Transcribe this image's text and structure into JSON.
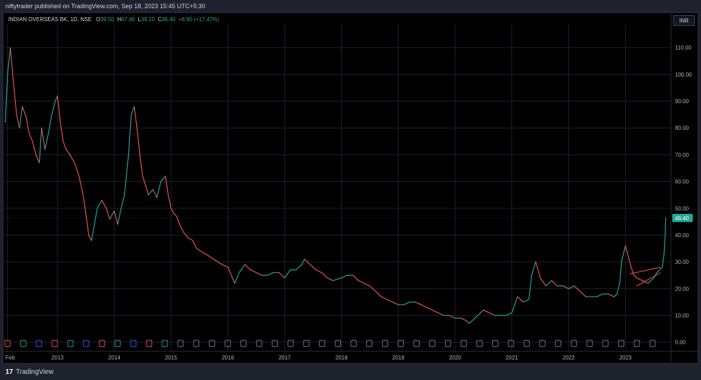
{
  "header": {
    "published_by": "niftytrader published on TradingView.com, Sep 18, 2023 15:45 UTC+5:30"
  },
  "legend": {
    "symbol": "INDIAN OVERSEAS BK, 1D, NSE",
    "open_label": "O",
    "open": "39.50",
    "high_label": "H",
    "high": "47.40",
    "low_label": "L",
    "low": "39.10",
    "close_label": "C",
    "close": "46.40",
    "change": "+6.90 (+17.47%)"
  },
  "currency_button": "INR",
  "last_price_tag": "46.40",
  "footer": {
    "logo_text": "TradingView",
    "logo_mark": "17"
  },
  "colors": {
    "up": "#26a69a",
    "down": "#ef5350",
    "price_tag": "#26a69a",
    "background": "#000000"
  },
  "chart_data": {
    "type": "line",
    "title": "INDIAN OVERSEAS BK, 1D, NSE",
    "yticks": [
      "0.00",
      "10.00",
      "20.00",
      "30.00",
      "40.00",
      "50.00",
      "60.00",
      "70.00",
      "80.00",
      "90.00",
      "100.00",
      "110.00"
    ],
    "ylim": [
      -3.4,
      118.6
    ],
    "xticks": [
      "Feb",
      "2013",
      "2014",
      "2015",
      "2016",
      "2017",
      "2018",
      "2019",
      "2020",
      "2021",
      "2022",
      "2023"
    ],
    "xtick_dates": [
      2012.12,
      2013.0,
      2014.0,
      2015.0,
      2016.0,
      2017.0,
      2018.0,
      2019.0,
      2020.0,
      2021.0,
      2022.0,
      2023.0
    ],
    "xlim": [
      2012.06,
      2023.8
    ],
    "series": [
      {
        "x": [
          2012.08,
          2012.12,
          2012.17,
          2012.22,
          2012.28,
          2012.33,
          2012.38,
          2012.45,
          2012.5,
          2012.56,
          2012.62,
          2012.68,
          2012.72,
          2012.78,
          2012.84,
          2012.9,
          2012.96,
          2013.0,
          2013.05,
          2013.1,
          2013.15,
          2013.22,
          2013.3,
          2013.38,
          2013.45,
          2013.5,
          2013.55,
          2013.6,
          2013.65,
          2013.7,
          2013.78,
          2013.86,
          2013.92,
          2014.0,
          2014.06,
          2014.12,
          2014.18,
          2014.25,
          2014.3,
          2014.35,
          2014.4,
          2014.45,
          2014.5,
          2014.56,
          2014.6,
          2014.68,
          2014.75,
          2014.82,
          2014.9,
          2014.95,
          2015.0,
          2015.05,
          2015.1,
          2015.15,
          2015.22,
          2015.3,
          2015.38,
          2015.45,
          2015.52,
          2015.6,
          2015.68,
          2015.75,
          2015.82,
          2015.9,
          2016.0,
          2016.08,
          2016.12,
          2016.2,
          2016.3,
          2016.4,
          2016.5,
          2016.6,
          2016.7,
          2016.8,
          2016.9,
          2017.0,
          2017.1,
          2017.2,
          2017.3,
          2017.35,
          2017.45,
          2017.55,
          2017.65,
          2017.75,
          2017.85,
          2018.0,
          2018.1,
          2018.2,
          2018.3,
          2018.4,
          2018.5,
          2018.6,
          2018.7,
          2018.8,
          2018.9,
          2019.0,
          2019.1,
          2019.2,
          2019.3,
          2019.4,
          2019.5,
          2019.6,
          2019.7,
          2019.8,
          2019.9,
          2020.0,
          2020.1,
          2020.2,
          2020.25,
          2020.3,
          2020.4,
          2020.5,
          2020.6,
          2020.7,
          2020.8,
          2020.9,
          2021.0,
          2021.05,
          2021.1,
          2021.2,
          2021.3,
          2021.35,
          2021.42,
          2021.5,
          2021.6,
          2021.7,
          2021.8,
          2021.9,
          2022.0,
          2022.1,
          2022.2,
          2022.3,
          2022.4,
          2022.5,
          2022.6,
          2022.7,
          2022.8,
          2022.85,
          2022.9,
          2022.93,
          2023.0,
          2023.05,
          2023.1,
          2023.15,
          2023.2,
          2023.3,
          2023.4,
          2023.5,
          2023.55,
          2023.6,
          2023.65,
          2023.68,
          2023.7,
          2023.71
        ],
        "y": [
          82,
          100,
          110,
          98,
          85,
          80,
          88,
          84,
          78,
          75,
          70,
          67,
          80,
          72,
          78,
          85,
          90,
          92,
          82,
          75,
          72,
          70,
          67,
          62,
          55,
          48,
          40,
          38,
          44,
          50,
          53,
          50,
          46,
          49,
          44,
          50,
          55,
          70,
          85,
          88,
          80,
          70,
          62,
          58,
          55,
          57,
          54,
          60,
          62,
          55,
          50,
          48,
          47,
          44,
          41,
          39,
          38,
          35,
          34,
          33,
          32,
          31,
          30,
          29,
          28,
          24,
          22,
          26,
          29,
          27,
          26,
          25,
          25,
          26,
          26,
          24,
          27,
          27,
          29,
          31,
          29,
          27,
          26,
          24,
          23,
          24,
          25,
          25,
          23,
          22,
          21,
          19,
          17,
          16,
          15,
          14,
          14,
          15,
          15,
          14,
          13,
          12,
          11,
          10,
          10,
          9,
          9,
          8,
          7,
          8,
          10,
          12,
          11,
          10,
          10,
          10,
          11,
          14,
          17,
          15,
          16,
          25,
          30,
          24,
          21,
          23,
          21,
          21,
          20,
          21,
          19,
          17,
          17,
          17,
          18,
          18,
          17,
          18,
          22,
          30,
          36,
          32,
          28,
          25,
          24,
          23,
          22,
          24,
          26,
          27,
          28,
          33,
          40,
          46.4
        ]
      }
    ],
    "last_value": 46.4,
    "annotation": "rising wedge pattern drawn in red near 2023"
  }
}
